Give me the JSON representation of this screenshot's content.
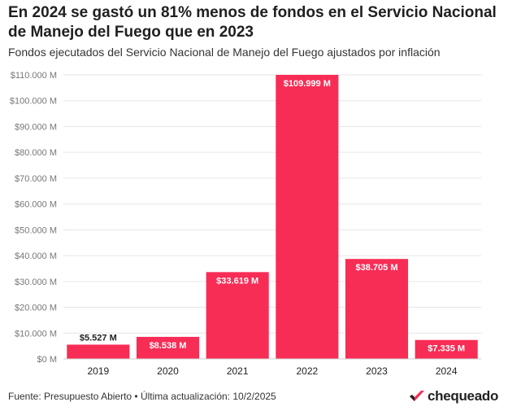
{
  "header": {
    "title": "En 2024 se gastó un 81% menos de fondos en el Servicio Nacional de Manejo del Fuego que en 2023",
    "subtitle": "Fondos ejecutados del Servicio Nacional de Manejo del Fuego ajustados por inflación"
  },
  "footer": {
    "source": "Fuente: Presupuesto Abierto • Última actualización: 10/2/2025",
    "logo_text": "chequeado",
    "logo_icon": "chequeado-logo-icon"
  },
  "colors": {
    "bar": "#f72d55",
    "grid": "#e6e6e6",
    "label_dark": "#222222",
    "label_light": "#ffffff"
  },
  "chart_data": {
    "type": "bar",
    "title": "En 2024 se gastó un 81% menos de fondos en el Servicio Nacional de Manejo del Fuego que en 2023",
    "subtitle": "Fondos ejecutados del Servicio Nacional de Manejo del Fuego ajustados por inflación",
    "categories": [
      "2019",
      "2020",
      "2021",
      "2022",
      "2023",
      "2024"
    ],
    "values": [
      5527,
      8538,
      33619,
      109999,
      38705,
      7335
    ],
    "value_labels": [
      "$5.527 M",
      "$8.538 M",
      "$33.619 M",
      "$109.999 M",
      "$38.705 M",
      "$7.335 M"
    ],
    "yticks": [
      0,
      10000,
      20000,
      30000,
      40000,
      50000,
      60000,
      70000,
      80000,
      90000,
      100000,
      110000
    ],
    "ytick_labels": [
      "$0 M",
      "$10.000 M",
      "$20.000 M",
      "$30.000 M",
      "$40.000 M",
      "$50.000 M",
      "$60.000 M",
      "$70.000 M",
      "$80.000 M",
      "$90.000 M",
      "$100.000 M",
      "$110.000 M"
    ],
    "ylim": [
      0,
      110000
    ],
    "grid": true,
    "xlabel": "",
    "ylabel": ""
  }
}
